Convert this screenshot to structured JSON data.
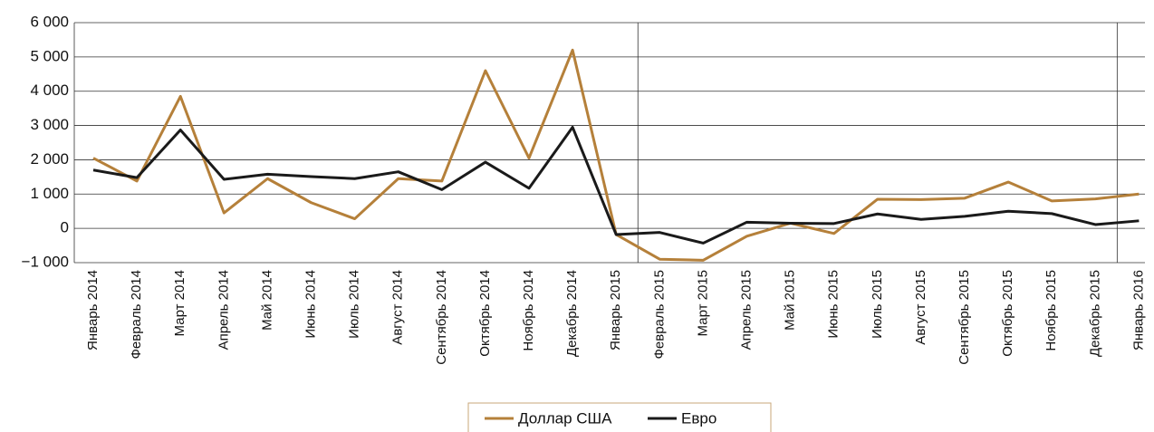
{
  "chart_data": {
    "type": "line",
    "categories": [
      "Январь 2014",
      "Февраль 2014",
      "Март 2014",
      "Апрель 2014",
      "Май 2014",
      "Июнь 2014",
      "Июль 2014",
      "Август 2014",
      "Сентябрь 2014",
      "Октябрь 2014",
      "Ноябрь 2014",
      "Декабрь 2014",
      "Январь 2015",
      "Февраль 2015",
      "Март 2015",
      "Апрель 2015",
      "Май 2015",
      "Июнь 2015",
      "Июль 2015",
      "Август 2015",
      "Сентябрь 2015",
      "Октябрь 2015",
      "Ноябрь 2015",
      "Декабрь 2015",
      "Январь 2016"
    ],
    "series": [
      {
        "name": "Доллар США",
        "color": "#b5803a",
        "values": [
          2050,
          1380,
          3850,
          450,
          1450,
          750,
          280,
          1450,
          1380,
          4600,
          2050,
          5200,
          -180,
          -900,
          -930,
          -230,
          150,
          -150,
          850,
          840,
          880,
          1350,
          800,
          860,
          1000
        ]
      },
      {
        "name": "Евро",
        "color": "#1a1a1a",
        "values": [
          1700,
          1480,
          2870,
          1430,
          1580,
          1510,
          1450,
          1650,
          1130,
          1930,
          1170,
          2950,
          -180,
          -120,
          -430,
          180,
          150,
          140,
          420,
          260,
          350,
          500,
          430,
          110,
          220
        ]
      }
    ],
    "ylim": [
      -1000,
      6000
    ],
    "yticks": [
      {
        "value": -1000,
        "label": "−1 000"
      },
      0,
      {
        "value": 1000,
        "label": "1 000"
      },
      {
        "value": 2000,
        "label": "2 000"
      },
      {
        "value": 3000,
        "label": "3 000"
      },
      {
        "value": 4000,
        "label": "4 000"
      },
      {
        "value": 5000,
        "label": "5 000"
      },
      {
        "value": 6000,
        "label": "6 000"
      }
    ],
    "grid": true,
    "legend": "bottom"
  }
}
